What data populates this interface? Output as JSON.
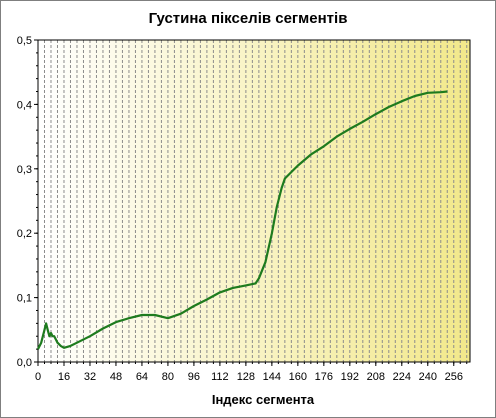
{
  "chart_data": {
    "type": "line",
    "title": "Густина пікселів сегментів",
    "xlabel": "Індекс сегмента",
    "ylabel": "",
    "xlim": [
      0,
      266
    ],
    "ylim": [
      0,
      0.5
    ],
    "x_ticks": [
      0,
      16,
      32,
      48,
      64,
      80,
      96,
      112,
      128,
      144,
      160,
      176,
      192,
      208,
      224,
      240,
      256
    ],
    "y_ticks": [
      "0,0",
      "0,1",
      "0,2",
      "0,3",
      "0,4",
      "0,5"
    ],
    "grid": {
      "vertical": true,
      "vertical_step": 4,
      "horizontal": false
    },
    "background_gradient": [
      "#ffffff",
      "#f2e88a"
    ],
    "series": [
      {
        "color": "#1e7b1e",
        "x": [
          0,
          2,
          4,
          5,
          6,
          7,
          8,
          9,
          10,
          11,
          12,
          14,
          16,
          20,
          24,
          32,
          40,
          48,
          56,
          64,
          72,
          80,
          88,
          96,
          104,
          112,
          120,
          128,
          134,
          136,
          140,
          144,
          147,
          150,
          152,
          156,
          160,
          168,
          176,
          184,
          192,
          200,
          208,
          216,
          224,
          232,
          240,
          248,
          252
        ],
        "y": [
          0.02,
          0.03,
          0.05,
          0.06,
          0.05,
          0.04,
          0.045,
          0.04,
          0.04,
          0.035,
          0.03,
          0.025,
          0.022,
          0.025,
          0.03,
          0.04,
          0.052,
          0.062,
          0.068,
          0.073,
          0.073,
          0.068,
          0.075,
          0.087,
          0.097,
          0.108,
          0.115,
          0.119,
          0.122,
          0.13,
          0.155,
          0.2,
          0.24,
          0.27,
          0.285,
          0.295,
          0.305,
          0.322,
          0.335,
          0.35,
          0.362,
          0.373,
          0.385,
          0.396,
          0.405,
          0.413,
          0.418,
          0.419,
          0.42
        ]
      }
    ]
  }
}
